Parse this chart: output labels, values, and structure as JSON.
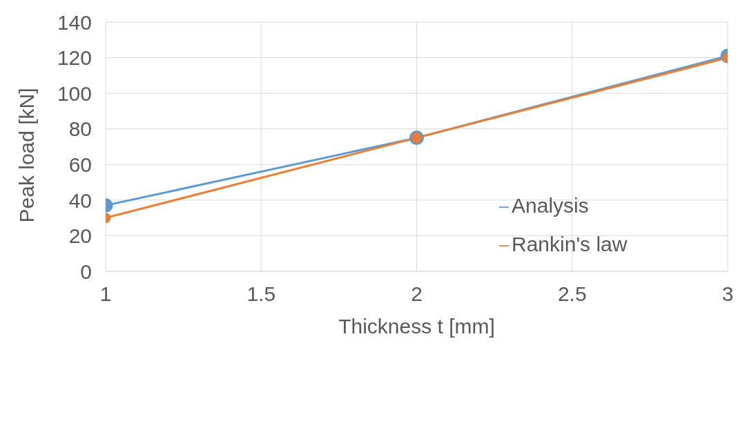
{
  "chart_data": {
    "type": "line",
    "xlabel": "Thickness t [mm]",
    "ylabel": "Peak load [kN]",
    "x": [
      1,
      2,
      3
    ],
    "series": [
      {
        "name": "Analysis",
        "color": "#5b9bd5",
        "values": [
          37,
          75,
          121
        ]
      },
      {
        "name": "Rankin's law",
        "color": "#ed7d31",
        "values": [
          30,
          75,
          120
        ]
      }
    ],
    "xlim": [
      1,
      3
    ],
    "xticks": [
      1,
      1.5,
      2,
      2.5,
      3
    ],
    "ylim": [
      0,
      140
    ],
    "yticks": [
      0,
      20,
      40,
      60,
      80,
      100,
      120,
      140
    ],
    "grid": true,
    "legend": "right",
    "marker": "circle",
    "line_style": "solid"
  }
}
